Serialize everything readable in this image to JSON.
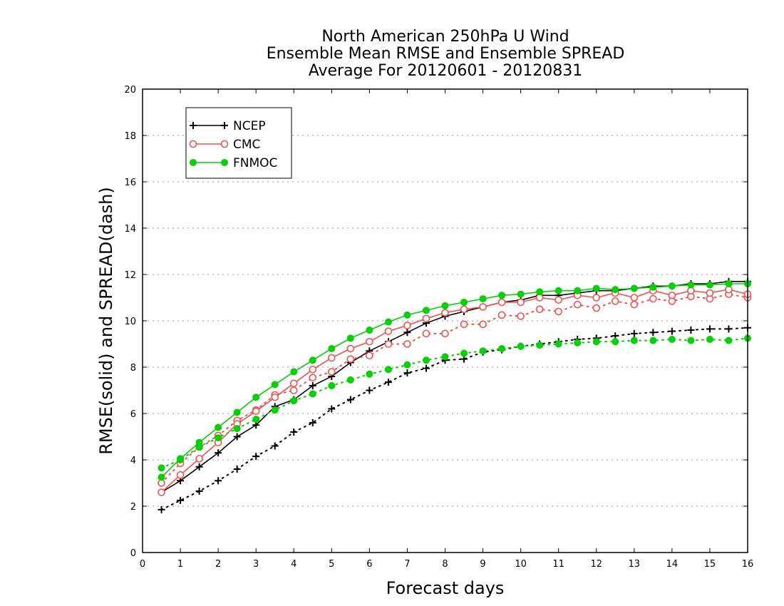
{
  "chart_data": {
    "type": "line",
    "title_lines": [
      "North American 250hPa U Wind",
      "Ensemble Mean RMSE and Ensemble SPREAD",
      "Average For 20120601 - 20120831"
    ],
    "xlabel": "Forecast days",
    "ylabel": "RMSE(solid) and SPREAD(dash)",
    "xlim": [
      0,
      16
    ],
    "ylim": [
      0,
      20
    ],
    "xticks": [
      0,
      1,
      2,
      3,
      4,
      5,
      6,
      7,
      8,
      9,
      10,
      11,
      12,
      13,
      14,
      15,
      16
    ],
    "yticks": [
      0,
      2,
      4,
      6,
      8,
      10,
      12,
      14,
      16,
      18,
      20
    ],
    "grid": "horizontal dotted",
    "legend_position": "top-left",
    "x": [
      0.5,
      1,
      1.5,
      2,
      2.5,
      3,
      3.5,
      4,
      4.5,
      5,
      5.5,
      6,
      6.5,
      7,
      7.5,
      8,
      8.5,
      9,
      9.5,
      10,
      10.5,
      11,
      11.5,
      12,
      12.5,
      13,
      13.5,
      14,
      14.5,
      15,
      15.5,
      16
    ],
    "series": [
      {
        "name": "NCEP",
        "color": "#000000",
        "marker": "plus",
        "rmse": [
          2.6,
          3.1,
          3.7,
          4.3,
          5.0,
          5.5,
          6.3,
          6.6,
          7.2,
          7.6,
          8.2,
          8.7,
          9.1,
          9.5,
          9.9,
          10.2,
          10.4,
          10.6,
          10.8,
          10.9,
          11.1,
          11.1,
          11.2,
          11.3,
          11.3,
          11.4,
          11.5,
          11.5,
          11.6,
          11.6,
          11.7,
          11.7
        ],
        "spread": [
          1.85,
          2.25,
          2.65,
          3.1,
          3.6,
          4.15,
          4.6,
          5.2,
          5.6,
          6.2,
          6.6,
          7.0,
          7.35,
          7.75,
          7.95,
          8.3,
          8.35,
          8.65,
          8.75,
          8.9,
          9.0,
          9.1,
          9.2,
          9.25,
          9.35,
          9.45,
          9.5,
          9.55,
          9.6,
          9.65,
          9.65,
          9.7
        ]
      },
      {
        "name": "CMC",
        "color": "#ff4d4d",
        "marker": "circle-open",
        "rmse": [
          2.6,
          3.35,
          4.05,
          4.75,
          5.55,
          6.1,
          6.7,
          7.3,
          7.9,
          8.4,
          8.8,
          9.1,
          9.55,
          9.8,
          10.1,
          10.35,
          10.5,
          10.6,
          10.8,
          10.8,
          11.0,
          10.9,
          11.1,
          11.0,
          11.2,
          11.0,
          11.3,
          11.1,
          11.3,
          11.2,
          11.35,
          11.15
        ],
        "spread": [
          3.0,
          3.85,
          4.55,
          5.05,
          5.7,
          6.15,
          6.8,
          7.0,
          7.55,
          7.8,
          8.35,
          8.5,
          9.0,
          9.0,
          9.45,
          9.45,
          9.85,
          9.85,
          10.25,
          10.2,
          10.5,
          10.4,
          10.7,
          10.55,
          10.85,
          10.7,
          10.95,
          10.85,
          11.05,
          10.95,
          11.15,
          11.0
        ]
      },
      {
        "name": "FNMOC",
        "color": "#00d400",
        "marker": "circle-filled",
        "rmse": [
          3.25,
          4.05,
          4.75,
          5.4,
          6.05,
          6.7,
          7.25,
          7.8,
          8.3,
          8.8,
          9.25,
          9.6,
          9.95,
          10.25,
          10.45,
          10.65,
          10.8,
          10.95,
          11.1,
          11.15,
          11.25,
          11.3,
          11.3,
          11.4,
          11.35,
          11.4,
          11.45,
          11.5,
          11.55,
          11.55,
          11.6,
          11.6
        ],
        "spread": [
          3.65,
          4.0,
          4.55,
          4.95,
          5.35,
          5.75,
          6.15,
          6.55,
          6.85,
          7.2,
          7.45,
          7.7,
          7.9,
          8.1,
          8.3,
          8.45,
          8.6,
          8.7,
          8.8,
          8.9,
          8.95,
          9.0,
          9.05,
          9.1,
          9.1,
          9.15,
          9.15,
          9.2,
          9.15,
          9.2,
          9.15,
          9.25
        ]
      }
    ]
  }
}
